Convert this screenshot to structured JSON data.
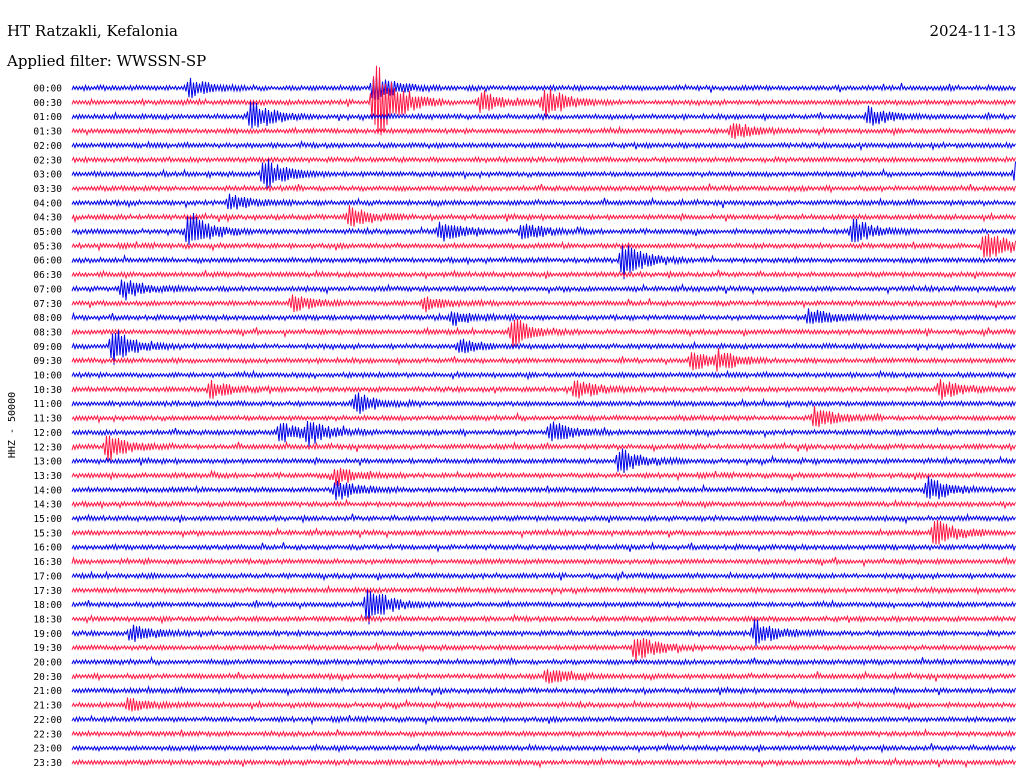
{
  "header": {
    "station": "HT Ratzakli, Kefalonia",
    "date": "2024-11-13",
    "filter": "Applied filter: WWSSN-SP"
  },
  "colors": {
    "even_trace": "#0000e6",
    "odd_trace": "#ff1744",
    "background": "#ffffff",
    "text": "#000000"
  },
  "chart_data": {
    "type": "line",
    "subtype": "helicorder",
    "ylabel": "HHZ - 50000",
    "row_labels": [
      "00:00",
      "00:30",
      "01:00",
      "01:30",
      "02:00",
      "02:30",
      "03:00",
      "03:30",
      "04:00",
      "04:30",
      "05:00",
      "05:30",
      "06:00",
      "06:30",
      "07:00",
      "07:30",
      "08:00",
      "08:30",
      "09:00",
      "09:30",
      "10:00",
      "10:30",
      "11:00",
      "11:30",
      "12:00",
      "12:30",
      "13:00",
      "13:30",
      "14:00",
      "14:30",
      "15:00",
      "15:30",
      "16:00",
      "16:30",
      "17:00",
      "17:30",
      "18:00",
      "18:30",
      "19:00",
      "19:30",
      "20:00",
      "20:30",
      "21:00",
      "21:30",
      "22:00",
      "22:30",
      "23:00",
      "23:30"
    ],
    "row_minutes": 30,
    "events": [
      {
        "row": 0,
        "minute": 3.7,
        "amplitude": 0.7
      },
      {
        "row": 0,
        "minute": 9.6,
        "amplitude": 1.0
      },
      {
        "row": 1,
        "minute": 9.6,
        "amplitude": 3.2
      },
      {
        "row": 1,
        "minute": 13.0,
        "amplitude": 0.8
      },
      {
        "row": 1,
        "minute": 15.0,
        "amplitude": 1.2
      },
      {
        "row": 2,
        "minute": 5.7,
        "amplitude": 1.1
      },
      {
        "row": 2,
        "minute": 25.3,
        "amplitude": 0.7
      },
      {
        "row": 3,
        "minute": 21.0,
        "amplitude": 0.6
      },
      {
        "row": 6,
        "minute": 6.1,
        "amplitude": 1.2
      },
      {
        "row": 6,
        "minute": 30.0,
        "amplitude": 1.0
      },
      {
        "row": 8,
        "minute": 5.0,
        "amplitude": 0.6
      },
      {
        "row": 9,
        "minute": 8.8,
        "amplitude": 0.8
      },
      {
        "row": 10,
        "minute": 3.7,
        "amplitude": 1.3
      },
      {
        "row": 10,
        "minute": 11.7,
        "amplitude": 0.8
      },
      {
        "row": 10,
        "minute": 14.3,
        "amplitude": 0.6
      },
      {
        "row": 10,
        "minute": 24.8,
        "amplitude": 1.0
      },
      {
        "row": 11,
        "minute": 29.0,
        "amplitude": 1.2
      },
      {
        "row": 12,
        "minute": 17.5,
        "amplitude": 1.4
      },
      {
        "row": 14,
        "minute": 1.6,
        "amplitude": 0.8
      },
      {
        "row": 15,
        "minute": 7.0,
        "amplitude": 0.6
      },
      {
        "row": 15,
        "minute": 11.2,
        "amplitude": 0.5
      },
      {
        "row": 16,
        "minute": 12.1,
        "amplitude": 0.5
      },
      {
        "row": 16,
        "minute": 23.4,
        "amplitude": 0.7
      },
      {
        "row": 17,
        "minute": 14.0,
        "amplitude": 1.0
      },
      {
        "row": 18,
        "minute": 1.3,
        "amplitude": 1.3
      },
      {
        "row": 18,
        "minute": 12.3,
        "amplitude": 0.5
      },
      {
        "row": 19,
        "minute": 19.7,
        "amplitude": 0.7
      },
      {
        "row": 19,
        "minute": 20.5,
        "amplitude": 0.6
      },
      {
        "row": 21,
        "minute": 4.4,
        "amplitude": 0.7
      },
      {
        "row": 21,
        "minute": 16.0,
        "amplitude": 0.8
      },
      {
        "row": 21,
        "minute": 27.6,
        "amplitude": 0.7
      },
      {
        "row": 22,
        "minute": 9.0,
        "amplitude": 0.8
      },
      {
        "row": 23,
        "minute": 23.6,
        "amplitude": 0.8
      },
      {
        "row": 24,
        "minute": 6.6,
        "amplitude": 0.7
      },
      {
        "row": 24,
        "minute": 7.5,
        "amplitude": 0.8
      },
      {
        "row": 24,
        "minute": 15.2,
        "amplitude": 0.8
      },
      {
        "row": 25,
        "minute": 1.1,
        "amplitude": 1.0
      },
      {
        "row": 26,
        "minute": 17.4,
        "amplitude": 0.9
      },
      {
        "row": 27,
        "minute": 8.4,
        "amplitude": 0.7
      },
      {
        "row": 28,
        "minute": 8.4,
        "amplitude": 0.8
      },
      {
        "row": 28,
        "minute": 27.2,
        "amplitude": 0.9
      },
      {
        "row": 31,
        "minute": 27.4,
        "amplitude": 1.1
      },
      {
        "row": 36,
        "minute": 9.4,
        "amplitude": 1.4
      },
      {
        "row": 38,
        "minute": 1.9,
        "amplitude": 0.6
      },
      {
        "row": 38,
        "minute": 21.7,
        "amplitude": 0.9
      },
      {
        "row": 39,
        "minute": 17.9,
        "amplitude": 1.0
      },
      {
        "row": 41,
        "minute": 15.1,
        "amplitude": 0.6
      },
      {
        "row": 43,
        "minute": 1.8,
        "amplitude": 0.5
      }
    ]
  }
}
